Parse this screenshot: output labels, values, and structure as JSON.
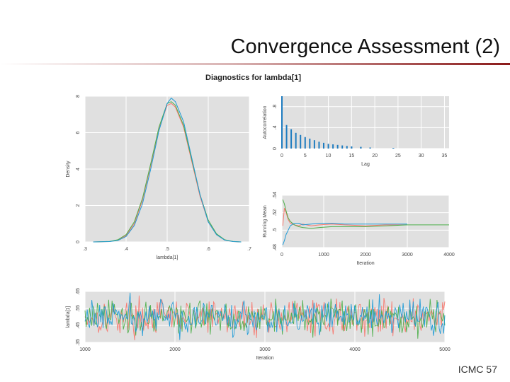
{
  "slide": {
    "title": "Convergence Assessment (2)",
    "figure_title": "Diagnostics for lambda[1]",
    "footer": "ICMC 57",
    "accent_color": "#8b1a1a"
  },
  "chart_data": [
    {
      "id": "density",
      "type": "line",
      "title": "",
      "xlabel": "lambda[1]",
      "ylabel": "Density",
      "xlim": [
        0.3,
        0.7
      ],
      "ylim": [
        0,
        8
      ],
      "xticks": [
        0.3,
        0.4,
        0.5,
        0.6,
        0.7
      ],
      "yticks": [
        0,
        2,
        4,
        6,
        8
      ],
      "grid": true,
      "x": [
        0.32,
        0.36,
        0.38,
        0.4,
        0.42,
        0.44,
        0.46,
        0.48,
        0.5,
        0.51,
        0.52,
        0.54,
        0.56,
        0.58,
        0.6,
        0.62,
        0.64,
        0.66,
        0.68
      ],
      "series": [
        {
          "color": "#f8766d",
          "values": [
            0.0,
            0.02,
            0.1,
            0.35,
            1.0,
            2.3,
            4.2,
            6.2,
            7.5,
            7.6,
            7.4,
            6.3,
            4.4,
            2.5,
            1.1,
            0.4,
            0.1,
            0.02,
            0.0
          ]
        },
        {
          "color": "#4daf4a",
          "values": [
            0.0,
            0.03,
            0.12,
            0.4,
            1.1,
            2.4,
            4.3,
            6.3,
            7.6,
            7.7,
            7.5,
            6.4,
            4.5,
            2.6,
            1.2,
            0.45,
            0.12,
            0.03,
            0.0
          ]
        },
        {
          "color": "#1e9bd7",
          "values": [
            0.0,
            0.02,
            0.08,
            0.3,
            0.9,
            2.1,
            4.0,
            6.1,
            7.6,
            7.9,
            7.7,
            6.6,
            4.6,
            2.6,
            1.1,
            0.4,
            0.1,
            0.02,
            0.0
          ]
        }
      ]
    },
    {
      "id": "autocorrelation",
      "type": "bar",
      "title": "",
      "xlabel": "Lag",
      "ylabel": "Autocorrelation",
      "xlim": [
        0,
        36
      ],
      "ylim": [
        0,
        1
      ],
      "xticks": [
        0,
        5,
        10,
        15,
        20,
        25,
        30,
        35
      ],
      "yticks": [
        0.0,
        0.4,
        0.8
      ],
      "grid": true,
      "x": [
        0,
        1,
        2,
        3,
        4,
        5,
        6,
        7,
        8,
        9,
        10,
        11,
        12,
        13,
        14,
        15,
        16,
        17,
        18,
        19,
        20,
        21,
        22,
        23,
        24,
        25,
        26,
        27,
        28,
        29,
        30,
        31,
        32,
        33,
        34,
        35
      ],
      "values": [
        1.0,
        0.45,
        0.37,
        0.3,
        0.26,
        0.22,
        0.19,
        0.16,
        0.13,
        0.11,
        0.09,
        0.08,
        0.07,
        0.06,
        0.05,
        0.04,
        0.04,
        0.03,
        0.03,
        0.02,
        0.03,
        0.02,
        0.02,
        0.02,
        0.01,
        0.01,
        0.01,
        0.01,
        0.0,
        0.01,
        0.0,
        0.01,
        0.0,
        0.0,
        0.01,
        0.0
      ],
      "color": "#1e7cc0"
    },
    {
      "id": "running-mean",
      "type": "line",
      "title": "",
      "xlabel": "Iteration",
      "ylabel": "Running Mean",
      "xlim": [
        0,
        4000
      ],
      "ylim": [
        0.48,
        0.54
      ],
      "xticks": [
        0,
        1000,
        2000,
        3000,
        4000
      ],
      "yticks": [
        0.48,
        0.5,
        0.52,
        0.54
      ],
      "grid": true,
      "x": [
        20,
        60,
        100,
        150,
        200,
        300,
        400,
        500,
        700,
        900,
        1200,
        1500,
        2000,
        2500,
        3000,
        3500,
        4000
      ],
      "series": [
        {
          "color": "#f8766d",
          "values": [
            0.505,
            0.525,
            0.52,
            0.512,
            0.508,
            0.506,
            0.505,
            0.507,
            0.505,
            0.506,
            0.507,
            0.506,
            0.505,
            0.506,
            0.506,
            null,
            null
          ]
        },
        {
          "color": "#4daf4a",
          "values": [
            0.535,
            0.53,
            0.522,
            0.514,
            0.51,
            0.506,
            0.504,
            0.503,
            0.502,
            0.503,
            0.504,
            0.504,
            0.504,
            0.505,
            0.506,
            0.506,
            0.506
          ]
        },
        {
          "color": "#1e9bd7",
          "values": [
            0.483,
            0.488,
            0.495,
            0.5,
            0.505,
            0.508,
            0.508,
            0.506,
            0.507,
            0.508,
            0.508,
            0.507,
            0.507,
            0.507,
            0.507,
            null,
            null
          ]
        }
      ]
    },
    {
      "id": "trace",
      "type": "line",
      "title": "",
      "xlabel": "Iteration",
      "ylabel": "lambda[1]",
      "xlim": [
        1000,
        5000
      ],
      "ylim": [
        0.35,
        0.65
      ],
      "xticks": [
        1000,
        2000,
        3000,
        4000,
        5000
      ],
      "yticks": [
        0.35,
        0.45,
        0.55,
        0.65
      ],
      "grid": true,
      "center": 0.5,
      "spread": 0.05,
      "samples_per_chain": 320,
      "series": [
        {
          "color": "#f8766d"
        },
        {
          "color": "#4daf4a"
        },
        {
          "color": "#1e9bd7"
        }
      ]
    }
  ]
}
